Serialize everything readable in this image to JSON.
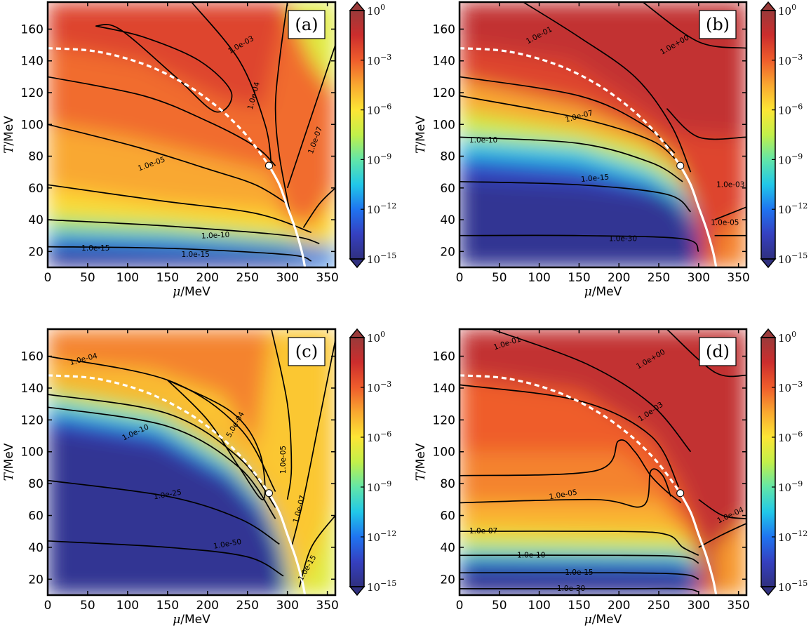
{
  "chart_data": [
    {
      "type": "heatmap",
      "panel": "(a)",
      "xlabel_var": "μ",
      "xlabel_unit": "/MeV",
      "ylabel_var": "T",
      "ylabel_unit": "/MeV",
      "xlim": [
        0,
        360
      ],
      "ylim": [
        10,
        177
      ],
      "xticks": [
        0,
        50,
        100,
        150,
        200,
        250,
        300,
        350
      ],
      "yticks": [
        20,
        40,
        60,
        80,
        100,
        120,
        140,
        160
      ],
      "color_scale": "log",
      "colorbar": {
        "min_exponent": -15,
        "max_exponent": 0,
        "tick_exponents": [
          0,
          -3,
          -6,
          -9,
          -12,
          -15
        ]
      },
      "contour_labels": [
        "1.0e-03",
        "1.0e-04",
        "1.0e-05",
        "1.0e-07",
        "1.0e-10",
        "1.0e-15",
        "1.0e-15"
      ],
      "crossover_line": {
        "style": "dashed",
        "color": "#ffffff"
      },
      "first_order_line": {
        "style": "solid",
        "color": "#ffffff"
      },
      "critical_point": {
        "mu": 277,
        "T": 74
      }
    },
    {
      "type": "heatmap",
      "panel": "(b)",
      "xlabel_var": "μ",
      "xlabel_unit": "/MeV",
      "ylabel_var": "T",
      "ylabel_unit": "/MeV",
      "xlim": [
        0,
        360
      ],
      "ylim": [
        10,
        177
      ],
      "xticks": [
        0,
        50,
        100,
        150,
        200,
        250,
        300,
        350
      ],
      "yticks": [
        20,
        40,
        60,
        80,
        100,
        120,
        140,
        160
      ],
      "color_scale": "log",
      "colorbar": {
        "min_exponent": -15,
        "max_exponent": 0,
        "tick_exponents": [
          0,
          -3,
          -6,
          -9,
          -12,
          -15
        ]
      },
      "contour_labels": [
        "1.0e-01",
        "1.0e+00",
        "1.0e-07",
        "1.0e-10",
        "1.0e-15",
        "1.0e-30",
        "1.0e-05",
        "1.0e-03"
      ],
      "crossover_line": {
        "style": "dashed",
        "color": "#ffffff"
      },
      "first_order_line": {
        "style": "solid",
        "color": "#ffffff"
      },
      "critical_point": {
        "mu": 277,
        "T": 74
      }
    },
    {
      "type": "heatmap",
      "panel": "(c)",
      "xlabel_var": "μ",
      "xlabel_unit": "/MeV",
      "ylabel_var": "T",
      "ylabel_unit": "/MeV",
      "xlim": [
        0,
        360
      ],
      "ylim": [
        10,
        177
      ],
      "xticks": [
        0,
        50,
        100,
        150,
        200,
        250,
        300,
        350
      ],
      "yticks": [
        20,
        40,
        60,
        80,
        100,
        120,
        140,
        160
      ],
      "color_scale": "log",
      "colorbar": {
        "min_exponent": -15,
        "max_exponent": 0,
        "tick_exponents": [
          0,
          -3,
          -6,
          -9,
          -12,
          -15
        ]
      },
      "contour_labels": [
        "1.0e-04",
        "5.0e-04",
        "1.0e-10",
        "1.0e-05",
        "1.0e-25",
        "1.0e-07",
        "1.0e-50",
        "1.0e-15"
      ],
      "crossover_line": {
        "style": "dashed",
        "color": "#ffffff"
      },
      "first_order_line": {
        "style": "solid",
        "color": "#ffffff"
      },
      "critical_point": {
        "mu": 277,
        "T": 74
      }
    },
    {
      "type": "heatmap",
      "panel": "(d)",
      "xlabel_var": "μ",
      "xlabel_unit": "/MeV",
      "ylabel_var": "T",
      "ylabel_unit": "/MeV",
      "xlim": [
        0,
        360
      ],
      "ylim": [
        10,
        177
      ],
      "xticks": [
        0,
        50,
        100,
        150,
        200,
        250,
        300,
        350
      ],
      "yticks": [
        20,
        40,
        60,
        80,
        100,
        120,
        140,
        160
      ],
      "color_scale": "log",
      "colorbar": {
        "min_exponent": -15,
        "max_exponent": 0,
        "tick_exponents": [
          0,
          -3,
          -6,
          -9,
          -12,
          -15
        ]
      },
      "contour_labels": [
        "1.0e-01",
        "1.0e+00",
        "1.0e-03",
        "1.0e-05",
        "1.0e-07",
        "1.0e-04",
        "1.0e-10",
        "1.0e-15",
        "1.0e-30"
      ],
      "crossover_line": {
        "style": "dashed",
        "color": "#ffffff"
      },
      "first_order_line": {
        "style": "solid",
        "color": "#ffffff"
      },
      "critical_point": {
        "mu": 277,
        "T": 74
      }
    }
  ],
  "colormap": [
    "#30307f",
    "#3540c0",
    "#1f74f0",
    "#21c8e8",
    "#62e6a8",
    "#c2f04a",
    "#fde635",
    "#f9a830",
    "#ef5d2c",
    "#cc2d2d",
    "#9a3a3a"
  ]
}
